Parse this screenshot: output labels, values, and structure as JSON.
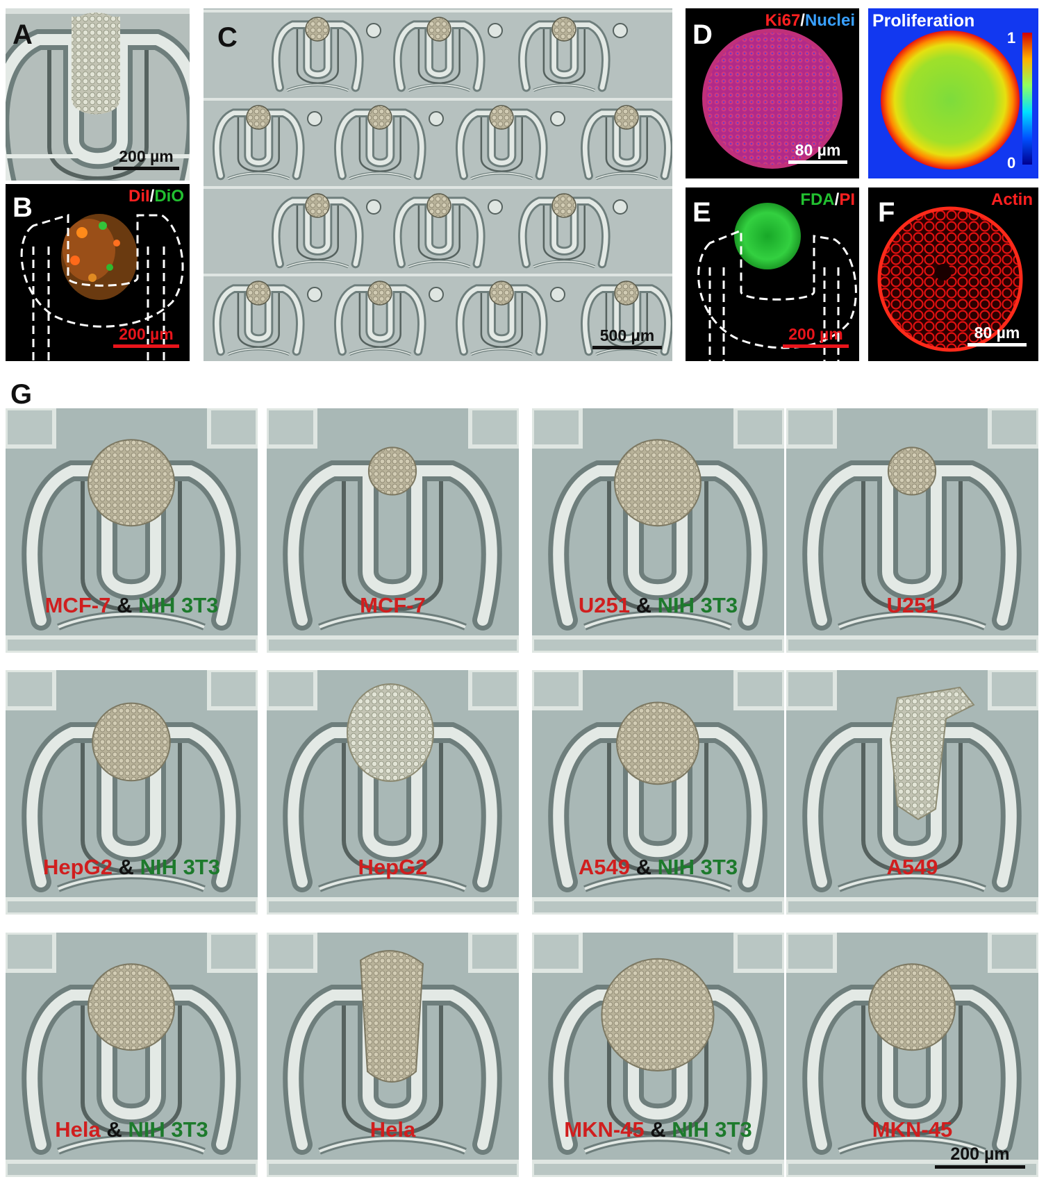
{
  "panels": {
    "A": {
      "label": "A",
      "scalebar": "200 µm"
    },
    "B": {
      "label": "B",
      "stain1": "DiI",
      "sep": "/",
      "stain2": "DiO",
      "scalebar": "200 µm"
    },
    "C": {
      "label": "C",
      "scalebar": "500 µm"
    },
    "D": {
      "label": "D",
      "stain1": "Ki67",
      "sep": "/",
      "stain2": "Nuclei",
      "scalebar": "80 µm",
      "heatmap_title": "Proliferation",
      "colorbar_max": "1",
      "colorbar_min": "0"
    },
    "E": {
      "label": "E",
      "stain1": "FDA",
      "sep": "/",
      "stain2": "PI",
      "scalebar": "200 µm"
    },
    "F": {
      "label": "F",
      "stain1": "Actin",
      "scalebar": "80 µm"
    },
    "G": {
      "label": "G",
      "scalebar": "200 µm"
    }
  },
  "grid_tiles": [
    {
      "a": "MCF-7",
      "amp": " & ",
      "b": "NIH 3T3",
      "size": 1.0,
      "shape": "round"
    },
    {
      "a": "MCF-7",
      "amp": "",
      "b": "",
      "size": 0.55,
      "shape": "round"
    },
    {
      "a": "U251",
      "amp": " & ",
      "b": "NIH 3T3",
      "size": 1.0,
      "shape": "round"
    },
    {
      "a": "U251",
      "amp": "",
      "b": "",
      "size": 0.55,
      "shape": "round"
    },
    {
      "a": "HepG2",
      "amp": " & ",
      "b": "NIH 3T3",
      "size": 0.9,
      "shape": "round"
    },
    {
      "a": "HepG2",
      "amp": "",
      "b": "",
      "size": 1.0,
      "shape": "loose"
    },
    {
      "a": "A549",
      "amp": " & ",
      "b": "NIH 3T3",
      "size": 0.95,
      "shape": "round"
    },
    {
      "a": "A549",
      "amp": "",
      "b": "",
      "size": 1.0,
      "shape": "scatter"
    },
    {
      "a": "Hela",
      "amp": " & ",
      "b": "NIH 3T3",
      "size": 1.0,
      "shape": "round"
    },
    {
      "a": "Hela",
      "amp": "",
      "b": "",
      "size": 1.0,
      "shape": "elong"
    },
    {
      "a": "MKN-45",
      "amp": " & ",
      "b": "NIH 3T3",
      "size": 1.3,
      "shape": "round"
    },
    {
      "a": "MKN-45",
      "amp": "",
      "b": "",
      "size": 1.0,
      "shape": "round"
    }
  ],
  "colors": {
    "chip_bg": "#a9b8b6",
    "trap_rim": "#dfe6e2",
    "label_red": "#d01e1e",
    "label_green": "#1d7a2c"
  }
}
